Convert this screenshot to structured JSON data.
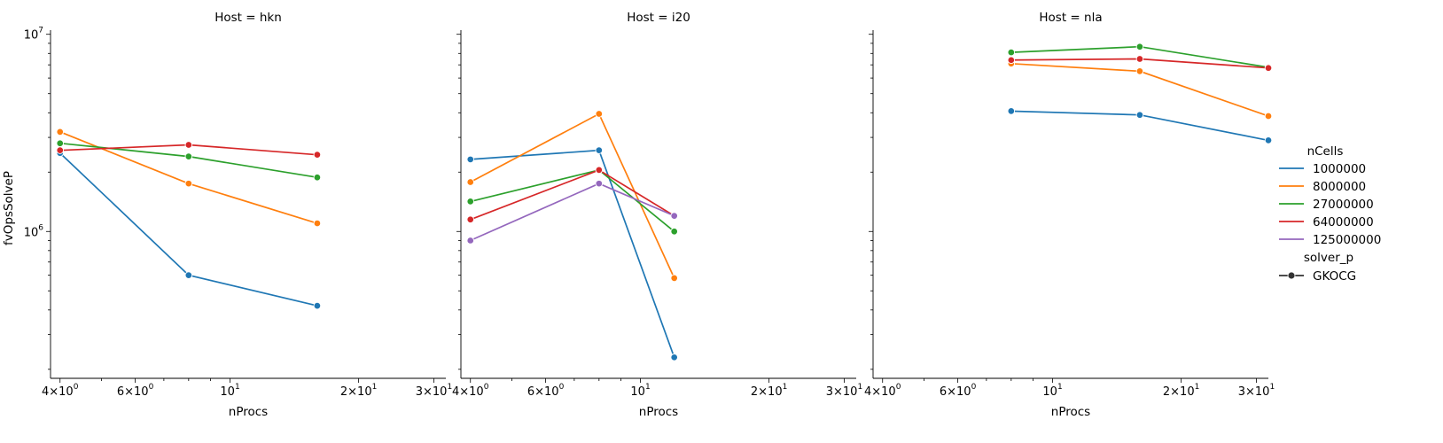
{
  "chart_data": {
    "type": "line",
    "ylabel": "fvOpsSolveP",
    "xlabel": "nProcs",
    "xscale": "log",
    "yscale": "log",
    "xlim": [
      3.8,
      32
    ],
    "ylim": [
      180000,
      10500000
    ],
    "xticks": [
      {
        "value": 4,
        "base": "4×10",
        "exp": "0"
      },
      {
        "value": 6,
        "base": "6×10",
        "exp": "0"
      },
      {
        "value": 10,
        "base": "10",
        "exp": "1"
      },
      {
        "value": 20,
        "base": "2×10",
        "exp": "1"
      },
      {
        "value": 30,
        "base": "3×10",
        "exp": "1"
      }
    ],
    "yticks": [
      {
        "value": 1000000,
        "base": "10",
        "exp": "6"
      },
      {
        "value": 10000000,
        "base": "10",
        "exp": "7"
      }
    ],
    "grid": false,
    "legend": {
      "position": "right",
      "hue_title": "nCells",
      "style_title": "solver_p",
      "style_entries": [
        {
          "label": "GKOCG",
          "marker": "circle"
        }
      ]
    },
    "series_colors": {
      "1000000": "#1f77b4",
      "8000000": "#ff7f0e",
      "27000000": "#2ca02c",
      "64000000": "#d62728",
      "125000000": "#9467bd"
    },
    "series_names": [
      "1000000",
      "8000000",
      "27000000",
      "64000000",
      "125000000"
    ],
    "panels": [
      {
        "title": "Host = hkn",
        "series": [
          {
            "name": "1000000",
            "x": [
              4,
              8,
              16
            ],
            "y": [
              2500000,
              600000,
              420000
            ]
          },
          {
            "name": "8000000",
            "x": [
              4,
              8,
              16
            ],
            "y": [
              3200000,
              1750000,
              1100000
            ]
          },
          {
            "name": "27000000",
            "x": [
              4,
              8,
              16
            ],
            "y": [
              2800000,
              2400000,
              1880000
            ]
          },
          {
            "name": "64000000",
            "x": [
              4,
              8,
              16
            ],
            "y": [
              2580000,
              2750000,
              2450000
            ]
          }
        ]
      },
      {
        "title": "Host = i20",
        "series": [
          {
            "name": "1000000",
            "x": [
              4,
              8,
              12
            ],
            "y": [
              2320000,
              2580000,
              230000
            ]
          },
          {
            "name": "8000000",
            "x": [
              4,
              8,
              12
            ],
            "y": [
              1780000,
              3950000,
              580000
            ]
          },
          {
            "name": "27000000",
            "x": [
              4,
              8,
              12
            ],
            "y": [
              1420000,
              2050000,
              1000000
            ]
          },
          {
            "name": "64000000",
            "x": [
              4,
              8,
              12
            ],
            "y": [
              1150000,
              2050000,
              1200000
            ]
          },
          {
            "name": "125000000",
            "x": [
              4,
              8,
              12
            ],
            "y": [
              900000,
              1750000,
              1200000
            ]
          }
        ]
      },
      {
        "title": "Host = nla",
        "series": [
          {
            "name": "1000000",
            "x": [
              8,
              16,
              32
            ],
            "y": [
              4080000,
              3900000,
              2900000
            ]
          },
          {
            "name": "8000000",
            "x": [
              8,
              16,
              32
            ],
            "y": [
              7100000,
              6500000,
              3850000
            ]
          },
          {
            "name": "27000000",
            "x": [
              8,
              16,
              32
            ],
            "y": [
              8100000,
              8650000,
              6800000
            ]
          },
          {
            "name": "64000000",
            "x": [
              8,
              16,
              32
            ],
            "y": [
              7400000,
              7500000,
              6750000
            ]
          }
        ]
      }
    ]
  }
}
